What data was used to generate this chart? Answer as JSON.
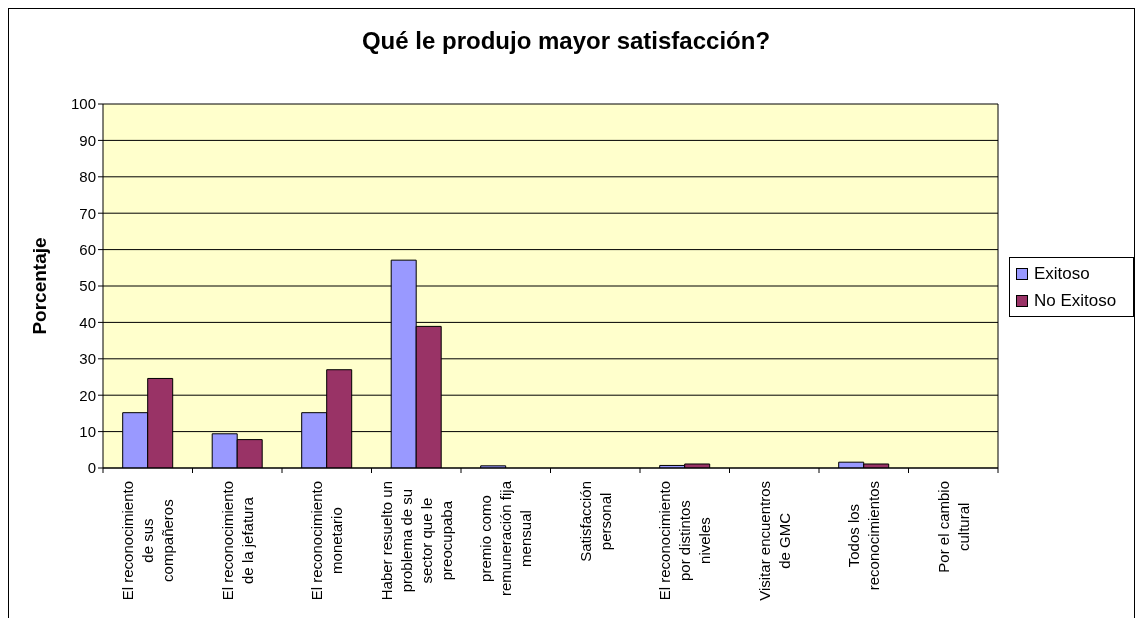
{
  "chart_data": {
    "type": "bar",
    "title": "Qué le produjo mayor satisfacción?",
    "ylabel": "Porcentaje",
    "categories": [
      "El reconocimiento de sus compañeros",
      "El reconocimiento de la jefatura",
      "El reconocimiento monetario",
      "Haber resuelto un problema de su sector que le preocupaba",
      "premio como remuneración fija mensual",
      "Satisfacción personal",
      "El reconocimiento por distintos niveles",
      "Visitar encuentros de GMC",
      "Todos los reconocimientos",
      "Por el cambio cultural"
    ],
    "series": [
      {
        "name": "Exitoso",
        "color": "#9999ff",
        "values": [
          15.2,
          9.4,
          15.2,
          57.1,
          0.6,
          0,
          0.7,
          0,
          1.6,
          0
        ]
      },
      {
        "name": "No Exitoso",
        "color": "#993366",
        "values": [
          24.6,
          7.8,
          27.0,
          38.9,
          0,
          0,
          1.1,
          0,
          1.1,
          0
        ]
      }
    ],
    "ylim": [
      0,
      100
    ],
    "yticks": [
      0,
      10,
      20,
      30,
      40,
      50,
      60,
      70,
      80,
      90,
      100
    ],
    "grid": "y",
    "legend": "right"
  }
}
